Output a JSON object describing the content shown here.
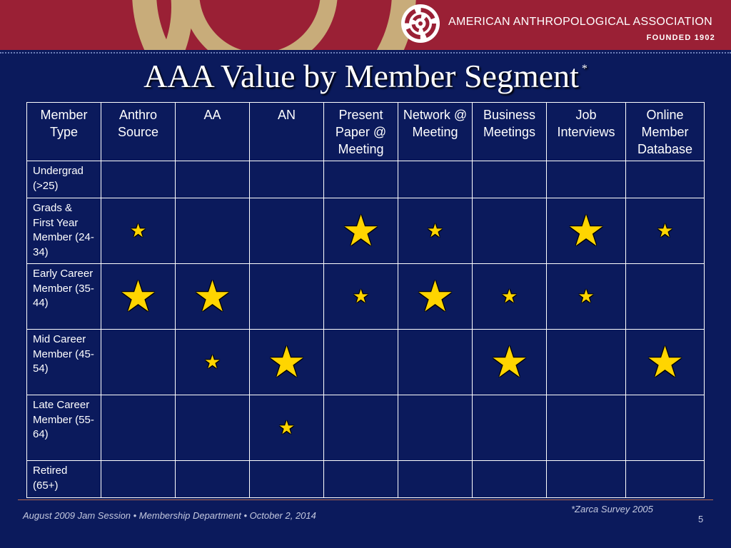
{
  "header": {
    "association_name": "AMERICAN ANTHROPOLOGICAL ASSOCIATION",
    "founded": "FOUNDED 1902",
    "logo_icon": "aaa-swirl-logo-icon",
    "colors": {
      "banner": "#9a2035",
      "swirl": "#c8ac7a",
      "background": "#0b1a5c",
      "star": "#ffd500"
    }
  },
  "slide": {
    "title": "AAA Value by Member Segment",
    "title_marker": "*"
  },
  "table": {
    "columns": [
      "Member Type",
      "Anthro Source",
      "AA",
      "AN",
      "Present Paper @ Meeting",
      "Network @ Meeting",
      "Business Meetings",
      "Job Interviews",
      "Online Member Database"
    ],
    "rows": [
      {
        "label": "Undergrad (>25)",
        "cells": [
          "",
          "",
          "",
          "",
          "",
          "",
          "",
          ""
        ]
      },
      {
        "label": "Grads & First Year Member (24-34)",
        "cells": [
          "small",
          "",
          "",
          "large",
          "small",
          "",
          "large",
          "small"
        ]
      },
      {
        "label": "Early Career Member (35-44)",
        "cells": [
          "large",
          "large",
          "",
          "small",
          "large",
          "small",
          "small",
          ""
        ]
      },
      {
        "label": "Mid Career Member (45-54)",
        "cells": [
          "",
          "small",
          "large",
          "",
          "",
          "large",
          "",
          "large"
        ]
      },
      {
        "label": "Late Career Member (55-64)",
        "cells": [
          "",
          "",
          "small",
          "",
          "",
          "",
          "",
          ""
        ]
      },
      {
        "label": "Retired (65+)",
        "cells": [
          "",
          "",
          "",
          "",
          "",
          "",
          "",
          ""
        ]
      }
    ],
    "star_icon": "star-icon"
  },
  "footer": {
    "left": "August 2009 Jam Session • Membership Department • October 2, 2014",
    "source": "*Zarca Survey 2005",
    "page_number": "5"
  }
}
